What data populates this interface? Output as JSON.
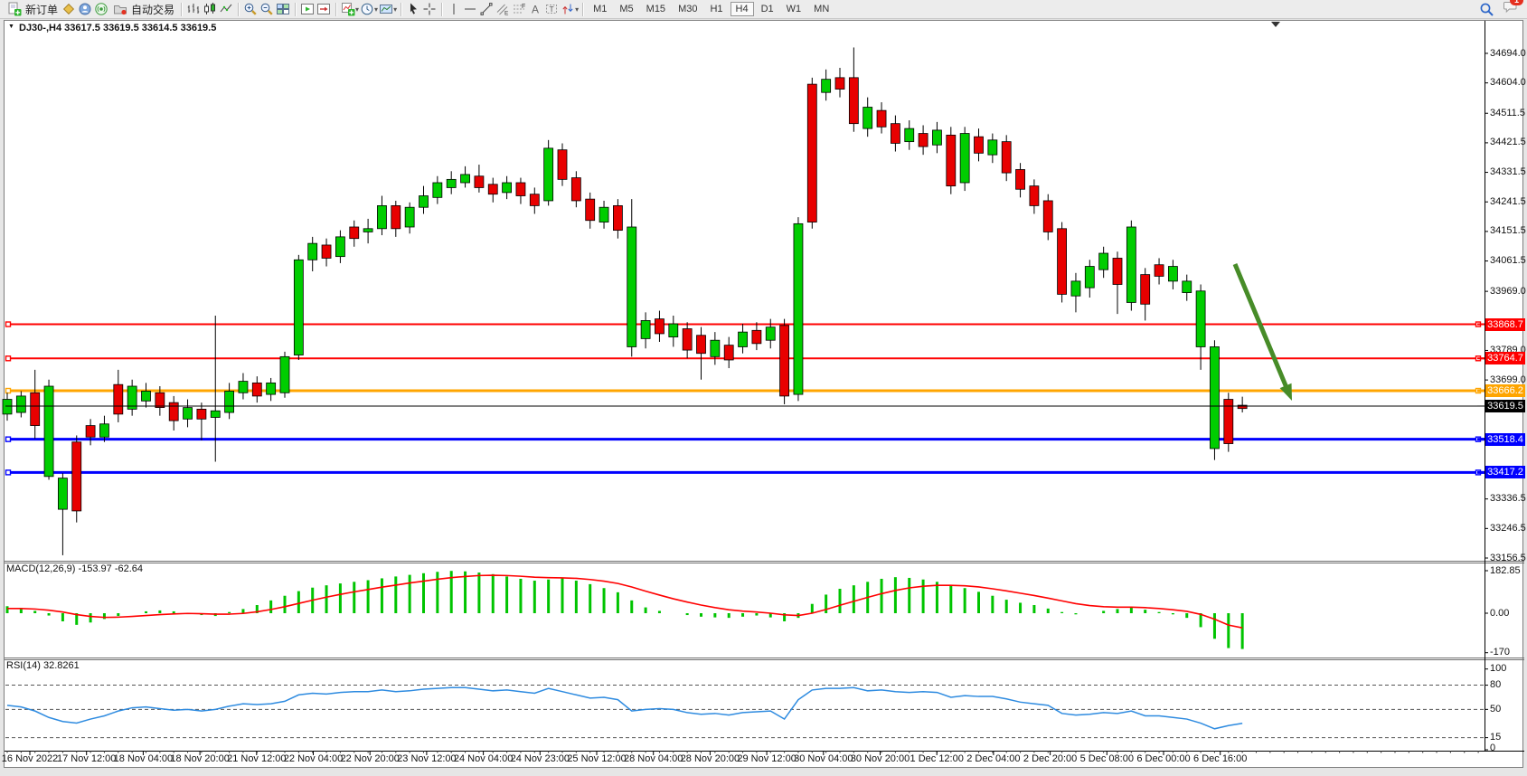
{
  "toolbar": {
    "new_order_label": "新订单",
    "auto_trading_label": "自动交易",
    "timeframes": [
      "M1",
      "M5",
      "M15",
      "M30",
      "H1",
      "H4",
      "D1",
      "W1",
      "MN"
    ],
    "active_timeframe": "H4",
    "chat_badge": "1"
  },
  "chart_header": {
    "title_text": "DJ30-,H4  33617.5 33619.5 33614.5 33619.5"
  },
  "chart_data": {
    "type": "candlestick",
    "symbol": "DJ30-",
    "period": "H4",
    "current_ohlc": {
      "open": 33617.5,
      "high": 33619.5,
      "low": 33614.5,
      "close": 33619.5
    },
    "colors": {
      "up": "#00CD00",
      "down": "#E80000",
      "outline": "#000000"
    },
    "price_axis_ticks": [
      34694.0,
      34604.0,
      34511.5,
      34421.5,
      34331.5,
      34241.5,
      34151.5,
      34061.5,
      33969.0,
      33789.0,
      33699.0,
      33336.5,
      33246.5,
      33156.5
    ],
    "time_labels": [
      "16 Nov 2022",
      "17 Nov 12:00",
      "18 Nov 04:00",
      "18 Nov 20:00",
      "21 Nov 12:00",
      "22 Nov 04:00",
      "22 Nov 20:00",
      "23 Nov 12:00",
      "24 Nov 04:00",
      "24 Nov 23:00",
      "25 Nov 12:00",
      "28 Nov 04:00",
      "28 Nov 20:00",
      "29 Nov 12:00",
      "30 Nov 04:00",
      "30 Nov 20:00",
      "1 Dec 12:00",
      "2 Dec 04:00",
      "2 Dec 20:00",
      "5 Dec 08:00",
      "6 Dec 00:00",
      "6 Dec 16:00"
    ],
    "candles": [
      [
        33595,
        33660,
        33575,
        33640
      ],
      [
        33600,
        33665,
        33585,
        33650
      ],
      [
        33660,
        33730,
        33520,
        33560
      ],
      [
        33405,
        33700,
        33395,
        33680
      ],
      [
        33305,
        33415,
        33165,
        33400
      ],
      [
        33510,
        33530,
        33265,
        33300
      ],
      [
        33560,
        33580,
        33500,
        33525
      ],
      [
        33525,
        33590,
        33510,
        33565
      ],
      [
        33685,
        33730,
        33570,
        33595
      ],
      [
        33610,
        33700,
        33590,
        33680
      ],
      [
        33635,
        33690,
        33615,
        33665
      ],
      [
        33660,
        33680,
        33590,
        33615
      ],
      [
        33630,
        33650,
        33545,
        33575
      ],
      [
        33580,
        33640,
        33555,
        33615
      ],
      [
        33610,
        33630,
        33515,
        33580
      ],
      [
        33585,
        33895,
        33450,
        33605
      ],
      [
        33600,
        33690,
        33580,
        33665
      ],
      [
        33660,
        33720,
        33640,
        33695
      ],
      [
        33690,
        33710,
        33630,
        33650
      ],
      [
        33655,
        33705,
        33635,
        33690
      ],
      [
        33660,
        33785,
        33645,
        33770
      ],
      [
        33775,
        34080,
        33760,
        34065
      ],
      [
        34065,
        34135,
        34030,
        34115
      ],
      [
        34110,
        34130,
        34045,
        34070
      ],
      [
        34075,
        34155,
        34055,
        34135
      ],
      [
        34165,
        34185,
        34105,
        34130
      ],
      [
        34150,
        34190,
        34115,
        34160
      ],
      [
        34160,
        34260,
        34140,
        34230
      ],
      [
        34230,
        34245,
        34135,
        34160
      ],
      [
        34165,
        34240,
        34145,
        34225
      ],
      [
        34225,
        34290,
        34205,
        34260
      ],
      [
        34255,
        34320,
        34235,
        34300
      ],
      [
        34285,
        34335,
        34265,
        34310
      ],
      [
        34300,
        34350,
        34285,
        34325
      ],
      [
        34320,
        34355,
        34270,
        34285
      ],
      [
        34295,
        34315,
        34240,
        34265
      ],
      [
        34270,
        34320,
        34250,
        34300
      ],
      [
        34300,
        34315,
        34235,
        34260
      ],
      [
        34265,
        34285,
        34205,
        34230
      ],
      [
        34245,
        34430,
        34230,
        34405
      ],
      [
        34400,
        34420,
        34290,
        34310
      ],
      [
        34315,
        34335,
        34225,
        34245
      ],
      [
        34250,
        34270,
        34160,
        34185
      ],
      [
        34180,
        34245,
        34160,
        34225
      ],
      [
        34230,
        34250,
        34130,
        34155
      ],
      [
        33800,
        34250,
        33770,
        34165
      ],
      [
        33825,
        33905,
        33795,
        33880
      ],
      [
        33885,
        33910,
        33815,
        33840
      ],
      [
        33830,
        33895,
        33800,
        33870
      ],
      [
        33855,
        33875,
        33765,
        33790
      ],
      [
        33835,
        33860,
        33700,
        33780
      ],
      [
        33770,
        33845,
        33745,
        33820
      ],
      [
        33805,
        33830,
        33735,
        33760
      ],
      [
        33800,
        33870,
        33780,
        33845
      ],
      [
        33850,
        33875,
        33790,
        33810
      ],
      [
        33820,
        33885,
        33795,
        33860
      ],
      [
        33865,
        33885,
        33625,
        33650
      ],
      [
        33655,
        34195,
        33635,
        34175
      ],
      [
        34600,
        34620,
        34160,
        34180
      ],
      [
        34575,
        34645,
        34550,
        34615
      ],
      [
        34620,
        34650,
        34560,
        34585
      ],
      [
        34620,
        34712,
        34455,
        34480
      ],
      [
        34465,
        34560,
        34440,
        34530
      ],
      [
        34520,
        34545,
        34450,
        34470
      ],
      [
        34480,
        34505,
        34395,
        34420
      ],
      [
        34425,
        34490,
        34400,
        34465
      ],
      [
        34450,
        34475,
        34385,
        34410
      ],
      [
        34415,
        34485,
        34390,
        34460
      ],
      [
        34445,
        34470,
        34265,
        34290
      ],
      [
        34300,
        34470,
        34275,
        34450
      ],
      [
        34440,
        34465,
        34365,
        34390
      ],
      [
        34385,
        34450,
        34360,
        34430
      ],
      [
        34425,
        34445,
        34305,
        34330
      ],
      [
        34340,
        34360,
        34255,
        34280
      ],
      [
        34290,
        34310,
        34205,
        34230
      ],
      [
        34245,
        34265,
        34125,
        34150
      ],
      [
        34160,
        34180,
        33935,
        33960
      ],
      [
        33955,
        34025,
        33905,
        34000
      ],
      [
        33980,
        34065,
        33950,
        34045
      ],
      [
        34035,
        34105,
        34010,
        34085
      ],
      [
        34070,
        34090,
        33900,
        33990
      ],
      [
        33935,
        34185,
        33910,
        34165
      ],
      [
        34020,
        34040,
        33880,
        33930
      ],
      [
        34050,
        34070,
        33990,
        34015
      ],
      [
        34000,
        34065,
        33975,
        34045
      ],
      [
        33965,
        34020,
        33940,
        34000
      ],
      [
        33800,
        33990,
        33730,
        33970
      ],
      [
        33490,
        33820,
        33455,
        33800
      ],
      [
        33640,
        33660,
        33480,
        33505
      ],
      [
        33622,
        33648,
        33600,
        33612
      ]
    ],
    "horizontal_lines": [
      {
        "price": 33868.7,
        "color": "#FF0000",
        "width": 2,
        "label": "33868.7"
      },
      {
        "price": 33764.7,
        "color": "#FF0000",
        "width": 2,
        "label": "33764.7"
      },
      {
        "price": 33666.2,
        "color": "#FFA500",
        "width": 3,
        "label": "33666.2"
      },
      {
        "price": 33518.4,
        "color": "#0000FF",
        "width": 3,
        "label": "33518.4"
      },
      {
        "price": 33417.2,
        "color": "#0000FF",
        "width": 3,
        "label": "33417.2"
      }
    ],
    "bid_line": {
      "price": 33619.5,
      "color": "#000000",
      "width": 1,
      "label": "33619.5"
    },
    "macd": {
      "label_text": "MACD(12,26,9) -153.97 -62.64",
      "hist_color": "#00C400",
      "signal_color": "#FF0000",
      "axis_labels": [
        {
          "v": 182.85,
          "text": "182.85"
        },
        {
          "v": 0,
          "text": "0.00"
        },
        {
          "v": -170,
          "text": "-170"
        }
      ],
      "hist": [
        30,
        22,
        10,
        -10,
        -35,
        -50,
        -40,
        -25,
        -12,
        0,
        8,
        12,
        8,
        0,
        -8,
        -12,
        5,
        18,
        35,
        55,
        75,
        95,
        110,
        120,
        128,
        135,
        142,
        150,
        158,
        165,
        172,
        178,
        182,
        180,
        175,
        168,
        158,
        148,
        140,
        145,
        150,
        140,
        125,
        108,
        90,
        55,
        25,
        10,
        0,
        -8,
        -15,
        -18,
        -20,
        -15,
        -10,
        -18,
        -35,
        -20,
        40,
        80,
        105,
        120,
        135,
        148,
        155,
        152,
        145,
        135,
        122,
        108,
        92,
        75,
        58,
        45,
        35,
        20,
        5,
        -5,
        0,
        10,
        18,
        25,
        15,
        5,
        -5,
        -20,
        -60,
        -110,
        -150,
        -154
      ],
      "signal": [
        20,
        20,
        18,
        13,
        5,
        -6,
        -14,
        -18,
        -17,
        -14,
        -10,
        -6,
        -3,
        -1,
        -2,
        -4,
        -4,
        -1,
        6,
        16,
        28,
        42,
        56,
        69,
        81,
        92,
        102,
        112,
        121,
        130,
        138,
        146,
        153,
        158,
        162,
        163,
        162,
        159,
        155,
        153,
        152,
        150,
        145,
        138,
        128,
        113,
        95,
        78,
        62,
        48,
        35,
        24,
        15,
        9,
        5,
        0,
        -7,
        -10,
        0,
        16,
        34,
        51,
        68,
        84,
        98,
        109,
        116,
        120,
        120,
        118,
        113,
        105,
        96,
        86,
        76,
        65,
        53,
        41,
        33,
        28,
        26,
        26,
        24,
        20,
        15,
        8,
        -5,
        -26,
        -51,
        -63
      ]
    },
    "rsi": {
      "label_text": "RSI(14) 32.8261",
      "color": "#2E8BE0",
      "levels": [
        80,
        50,
        15
      ],
      "axis_labels": [
        {
          "v": 100,
          "text": "100"
        },
        {
          "v": 80,
          "text": "80"
        },
        {
          "v": 50,
          "text": "50"
        },
        {
          "v": 15,
          "text": "15"
        },
        {
          "v": 0,
          "text": "0"
        }
      ],
      "values": [
        55,
        53,
        48,
        40,
        35,
        33,
        38,
        42,
        48,
        52,
        53,
        51,
        49,
        50,
        48,
        50,
        54,
        57,
        56,
        57,
        60,
        68,
        70,
        69,
        71,
        72,
        72,
        74,
        72,
        73,
        75,
        76,
        77,
        77,
        75,
        73,
        74,
        72,
        70,
        76,
        72,
        68,
        64,
        65,
        62,
        48,
        50,
        51,
        50,
        46,
        44,
        45,
        43,
        46,
        47,
        48,
        38,
        62,
        74,
        76,
        76,
        77,
        73,
        74,
        72,
        71,
        72,
        71,
        65,
        67,
        66,
        66,
        63,
        59,
        57,
        55,
        45,
        43,
        44,
        46,
        45,
        48,
        42,
        42,
        40,
        38,
        33,
        26,
        30,
        32.8
      ]
    },
    "annotations": [
      {
        "type": "arrow",
        "from": [
          1366,
          292
        ],
        "to": [
          1429,
          443
        ],
        "color": "#478C28"
      }
    ]
  }
}
